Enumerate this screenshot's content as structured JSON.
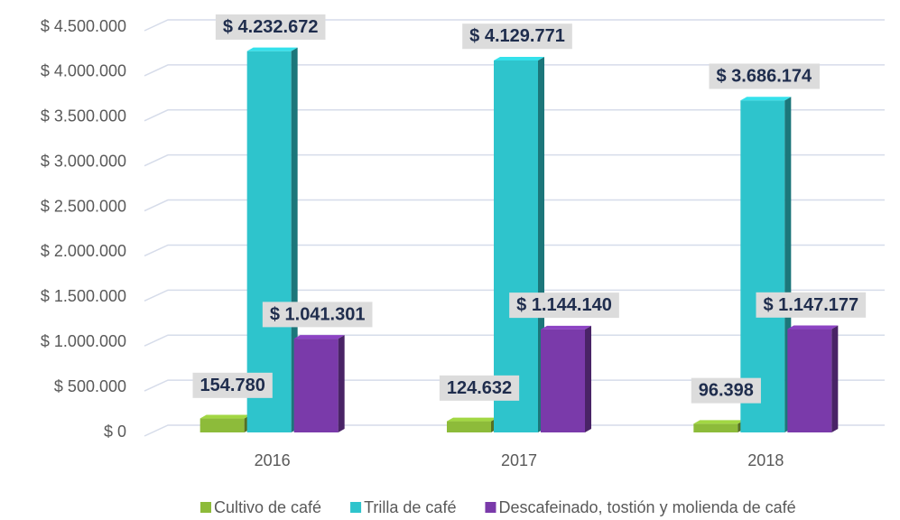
{
  "chart_data": {
    "type": "bar3d",
    "categories": [
      "2016",
      "2017",
      "2018"
    ],
    "series": [
      {
        "name": "Cultivo de café",
        "color": "#8dbb3a",
        "values": [
          154780,
          124632,
          96398
        ],
        "value_labels": [
          "154.780",
          "124.632",
          "96.398"
        ]
      },
      {
        "name": "Trilla de café",
        "color": "#2ec4cc",
        "values": [
          4232672,
          4129771,
          3686174
        ],
        "value_labels": [
          "$ 4.232.672",
          "$ 4.129.771",
          "$ 3.686.174"
        ]
      },
      {
        "name": "Descafeinado, tostión y molienda de café",
        "color": "#7a3aaa",
        "values": [
          1041301,
          1144140,
          1147177
        ],
        "value_labels": [
          "$ 1.041.301",
          "$ 1.144.140",
          "$ 1.147.177"
        ]
      }
    ],
    "ylim": [
      0,
      4500000
    ],
    "yticks": [
      {
        "value": 0,
        "label": "$ 0"
      },
      {
        "value": 500000,
        "label": "$ 500.000"
      },
      {
        "value": 1000000,
        "label": "$ 1.000.000"
      },
      {
        "value": 1500000,
        "label": "$ 1.500.000"
      },
      {
        "value": 2000000,
        "label": "$ 2.000.000"
      },
      {
        "value": 2500000,
        "label": "$ 2.500.000"
      },
      {
        "value": 3000000,
        "label": "$ 3.000.000"
      },
      {
        "value": 3500000,
        "label": "$ 3.500.000"
      },
      {
        "value": 4000000,
        "label": "$ 4.000.000"
      },
      {
        "value": 4500000,
        "label": "$ 4.500.000"
      }
    ],
    "grid": true
  }
}
